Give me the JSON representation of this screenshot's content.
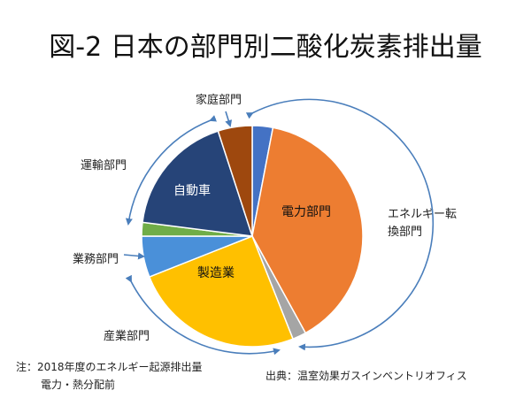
{
  "chart_data": {
    "type": "pie",
    "title": "図-2 日本の部門別二酸化炭素排出量",
    "slices": [
      {
        "label": "",
        "value": 3.0,
        "color": "#4472c4"
      },
      {
        "label": "電力部門",
        "value": 39.0,
        "color": "#ed7d31"
      },
      {
        "label": "",
        "value": 2.0,
        "color": "#a5a5a5"
      },
      {
        "label": "製造業",
        "value": 25.0,
        "color": "#ffc000"
      },
      {
        "label": "",
        "value": 6.0,
        "color": "#4a90d9"
      },
      {
        "label": "",
        "value": 2.0,
        "color": "#70ad47"
      },
      {
        "label": "自動車",
        "value": 18.0,
        "color": "#264478"
      },
      {
        "label": "",
        "value": 5.0,
        "color": "#9e480e"
      }
    ],
    "sector_labels": {
      "household": "家庭部門",
      "transport": "運輸部門",
      "business": "業務部門",
      "industry": "産業部門",
      "energy_line1": "エネルギー転",
      "energy_line2": "換部門"
    }
  },
  "notes": {
    "note_line1": "注：2018年度のエネルギー起源排出量",
    "note_line2": "電力・熱分配前",
    "source": "出典：温室効果ガスインベントリオフィス"
  }
}
